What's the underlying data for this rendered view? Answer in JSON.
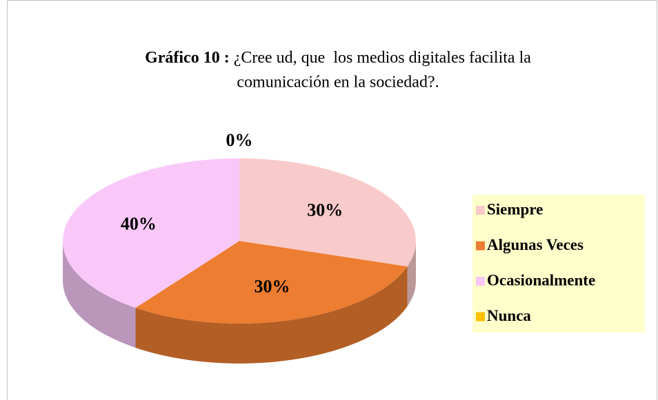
{
  "chart_data": {
    "type": "pie",
    "title": {
      "label": "Gráfico 10 :",
      "lines": [
        "¿Cree ud, que  los medios digitales facilita la",
        "comunicación en la sociedad?."
      ]
    },
    "categories": [
      "Siempre",
      "Algunas Veces",
      "Ocasionalmente",
      "Nunca"
    ],
    "values": [
      30,
      30,
      40,
      0
    ],
    "value_labels": [
      "30%",
      "30%",
      "40%",
      "0%"
    ],
    "colors": [
      "#f9caca",
      "#ed7d31",
      "#f9c8f9",
      "#ffc000"
    ],
    "legend": "right"
  }
}
